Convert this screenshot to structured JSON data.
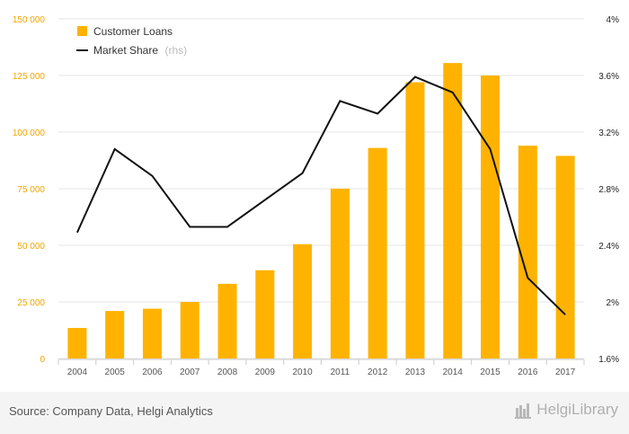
{
  "colors": {
    "bar": "#ffb300",
    "line": "#111111",
    "left_axis": "#f0a500",
    "right_axis": "#222222"
  },
  "chart_data": {
    "type": "bar",
    "categories": [
      "2004",
      "2005",
      "2006",
      "2007",
      "2008",
      "2009",
      "2010",
      "2011",
      "2012",
      "2013",
      "2014",
      "2015",
      "2016",
      "2017"
    ],
    "series": [
      {
        "name": "Customer Loans",
        "type": "bar",
        "axis": "left",
        "values": [
          13500,
          21000,
          22000,
          25000,
          33000,
          39000,
          50500,
          75000,
          93000,
          122000,
          130500,
          125000,
          94000,
          89500
        ]
      },
      {
        "name": "Market Share",
        "name_note": "(rhs)",
        "type": "line",
        "axis": "right",
        "values": [
          2.49,
          3.08,
          2.89,
          2.53,
          2.53,
          2.72,
          2.91,
          3.42,
          3.33,
          3.59,
          3.48,
          3.08,
          2.17,
          1.91
        ]
      }
    ],
    "y_left": {
      "ylim": [
        0,
        150000
      ],
      "ticks": [
        "0",
        "25 000",
        "50 000",
        "75 000",
        "100 000",
        "125 000",
        "150 000"
      ]
    },
    "y_right": {
      "ylim": [
        1.6,
        4.0
      ],
      "ticks": [
        "1.6%",
        "2%",
        "2.4%",
        "2.8%",
        "3.2%",
        "3.6%",
        "4%"
      ]
    },
    "legend_position": "top-left",
    "grid": true
  },
  "footer": {
    "source": "Source: Company Data, Helgi Analytics",
    "logo": "HelgiLibrary"
  }
}
